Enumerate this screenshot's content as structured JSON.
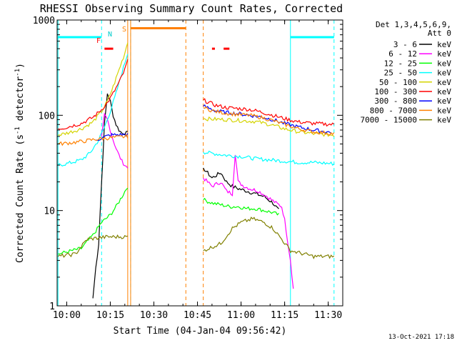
{
  "chart_data": {
    "type": "line",
    "title": "RHESSI Observing Summary Count Rates, Corrected",
    "xlabel": "Start Time (04-Jan-04 09:56:42)",
    "ylabel": "Corrected Count Rate (s⁻¹ detector⁻¹)",
    "ylabel_parts": {
      "main": "Corrected Count Rate (s",
      "sup1": "-1",
      "mid": " detector",
      "sup2": "-1",
      "end": ")"
    },
    "yscale": "log",
    "ylim": [
      1,
      1000
    ],
    "xlim": [
      "09:56:42",
      "11:35:00"
    ],
    "xticks": [
      "10:00",
      "10:15",
      "10:30",
      "10:45",
      "11:00",
      "11:15",
      "11:30"
    ],
    "yticks": [
      "1",
      "10",
      "100",
      "1000"
    ],
    "legend_header": [
      "Det 1,3,4,5,6,9,",
      "Att 0"
    ],
    "legend_position": "right",
    "footer": "13-Oct-2021 17:18",
    "flags": {
      "F": "F",
      "N": "N",
      "S": "S"
    },
    "series": [
      {
        "name": "3 - 6 keV",
        "color": "#000000",
        "points": [
          [
            "10:09",
            1.2
          ],
          [
            "10:10",
            2.5
          ],
          [
            "10:11",
            4.5
          ],
          [
            "10:12",
            20
          ],
          [
            "10:13",
            80
          ],
          [
            "10:14",
            170
          ],
          [
            "10:15",
            140
          ],
          [
            "10:16",
            100
          ],
          [
            "10:17",
            80
          ],
          [
            "10:18",
            70
          ],
          [
            "10:19",
            65
          ],
          [
            "10:21",
            65
          ],
          [
            "10:47",
            28
          ],
          [
            "10:50",
            22
          ],
          [
            "10:53",
            25
          ],
          [
            "10:55",
            20
          ],
          [
            "10:57",
            18
          ],
          [
            "10:59",
            17
          ],
          [
            "11:02",
            16
          ],
          [
            "11:05",
            15
          ],
          [
            "11:08",
            14
          ],
          [
            "11:11",
            12
          ],
          [
            "11:13",
            10
          ]
        ]
      },
      {
        "name": "6 - 12 keV",
        "color": "#ff00ff",
        "points": [
          [
            "10:12",
            60
          ],
          [
            "10:13",
            100
          ],
          [
            "10:14",
            90
          ],
          [
            "10:15",
            70
          ],
          [
            "10:16",
            55
          ],
          [
            "10:17",
            45
          ],
          [
            "10:18",
            38
          ],
          [
            "10:19",
            33
          ],
          [
            "10:20",
            30
          ],
          [
            "10:21",
            28
          ],
          [
            "10:47",
            22
          ],
          [
            "10:50",
            18
          ],
          [
            "10:53",
            20
          ],
          [
            "10:55",
            16
          ],
          [
            "10:57",
            15
          ],
          [
            "10:58",
            40
          ],
          [
            "10:59",
            20
          ],
          [
            "11:01",
            18
          ],
          [
            "11:03",
            17
          ],
          [
            "11:06",
            16
          ],
          [
            "11:09",
            14
          ],
          [
            "11:12",
            12
          ],
          [
            "11:14",
            11
          ],
          [
            "11:15",
            8
          ],
          [
            "11:17",
            3
          ],
          [
            "11:18",
            1.5
          ],
          [
            "11:32",
            1.4
          ]
        ]
      },
      {
        "name": "12 - 25 keV",
        "color": "#00ff00",
        "points": [
          [
            "09:57",
            3.5
          ],
          [
            "10:05",
            4
          ],
          [
            "10:09",
            5.5
          ],
          [
            "10:12",
            7.5
          ],
          [
            "10:15",
            9
          ],
          [
            "10:17",
            11
          ],
          [
            "10:19",
            14
          ],
          [
            "10:21",
            18
          ],
          [
            "10:47",
            13
          ],
          [
            "10:50",
            12
          ],
          [
            "10:53",
            11.5
          ],
          [
            "10:56",
            11
          ],
          [
            "10:59",
            11
          ],
          [
            "11:02",
            10.5
          ],
          [
            "11:05",
            10.5
          ],
          [
            "11:08",
            10
          ],
          [
            "11:11",
            9.5
          ],
          [
            "11:13",
            9
          ]
        ]
      },
      {
        "name": "25 - 50 keV",
        "color": "#00ffff",
        "points": [
          [
            "09:57",
            30
          ],
          [
            "10:00",
            31
          ],
          [
            "10:05",
            34
          ],
          [
            "10:08",
            40
          ],
          [
            "10:11",
            55
          ],
          [
            "10:13",
            75
          ],
          [
            "10:15",
            110
          ],
          [
            "10:17",
            170
          ],
          [
            "10:19",
            280
          ],
          [
            "10:21",
            450
          ],
          [
            "10:47",
            41
          ],
          [
            "10:55",
            38
          ],
          [
            "11:00",
            37
          ],
          [
            "11:05",
            35
          ],
          [
            "11:10",
            34
          ],
          [
            "11:15",
            33
          ],
          [
            "11:20",
            32
          ],
          [
            "11:25",
            32
          ],
          [
            "11:32",
            31
          ]
        ]
      },
      {
        "name": "50 - 100 keV",
        "color": "#d4d400",
        "points": [
          [
            "09:57",
            62
          ],
          [
            "10:00",
            65
          ],
          [
            "10:05",
            72
          ],
          [
            "10:09",
            85
          ],
          [
            "10:12",
            110
          ],
          [
            "10:14",
            140
          ],
          [
            "10:16",
            200
          ],
          [
            "10:18",
            300
          ],
          [
            "10:20",
            450
          ],
          [
            "10:21",
            600
          ],
          [
            "10:47",
            92
          ],
          [
            "10:55",
            90
          ],
          [
            "11:00",
            88
          ],
          [
            "11:05",
            86
          ],
          [
            "11:10",
            80
          ],
          [
            "11:15",
            72
          ],
          [
            "11:20",
            67
          ],
          [
            "11:25",
            64
          ],
          [
            "11:32",
            62
          ]
        ]
      },
      {
        "name": "100 - 300 keV",
        "color": "#ff0000",
        "points": [
          [
            "09:57",
            72
          ],
          [
            "10:00",
            75
          ],
          [
            "10:05",
            82
          ],
          [
            "10:09",
            95
          ],
          [
            "10:12",
            115
          ],
          [
            "10:14",
            135
          ],
          [
            "10:16",
            170
          ],
          [
            "10:18",
            220
          ],
          [
            "10:20",
            300
          ],
          [
            "10:21",
            380
          ],
          [
            "10:47",
            145
          ],
          [
            "10:51",
            128
          ],
          [
            "10:55",
            120
          ],
          [
            "10:59",
            118
          ],
          [
            "11:03",
            115
          ],
          [
            "11:07",
            108
          ],
          [
            "11:11",
            100
          ],
          [
            "11:15",
            92
          ],
          [
            "11:20",
            85
          ],
          [
            "11:25",
            82
          ],
          [
            "11:32",
            80
          ]
        ]
      },
      {
        "name": "300 - 800 keV",
        "color": "#0000ff",
        "points": [
          [
            "10:10",
            55
          ],
          [
            "10:15",
            62
          ],
          [
            "10:21",
            63
          ],
          [
            "10:47",
            125
          ],
          [
            "10:51",
            112
          ],
          [
            "10:55",
            107
          ],
          [
            "10:59",
            104
          ],
          [
            "11:03",
            100
          ],
          [
            "11:07",
            96
          ],
          [
            "11:11",
            90
          ],
          [
            "11:15",
            82
          ],
          [
            "11:20",
            75
          ],
          [
            "11:25",
            70
          ],
          [
            "11:31",
            66
          ]
        ]
      },
      {
        "name": "800 - 7000 keV",
        "color": "#ff8000",
        "points": [
          [
            "09:57",
            50
          ],
          [
            "10:00",
            51
          ],
          [
            "10:05",
            53
          ],
          [
            "10:10",
            56
          ],
          [
            "10:15",
            58
          ],
          [
            "10:21",
            60
          ],
          [
            "10:47",
            120
          ],
          [
            "10:51",
            110
          ],
          [
            "10:55",
            105
          ],
          [
            "10:59",
            102
          ],
          [
            "11:03",
            100
          ],
          [
            "11:07",
            95
          ],
          [
            "11:11",
            88
          ],
          [
            "11:15",
            80
          ],
          [
            "11:20",
            72
          ],
          [
            "11:25",
            67
          ],
          [
            "11:32",
            64
          ]
        ]
      },
      {
        "name": "7000 - 15000 keV",
        "color": "#808000",
        "points": [
          [
            "09:57",
            3.3
          ],
          [
            "10:03",
            3.5
          ],
          [
            "10:07",
            5
          ],
          [
            "10:14",
            5.3
          ],
          [
            "10:21",
            5.3
          ],
          [
            "10:47",
            3.8
          ],
          [
            "10:53",
            4.5
          ],
          [
            "10:57",
            6.5
          ],
          [
            "11:00",
            7.5
          ],
          [
            "11:04",
            8.2
          ],
          [
            "11:08",
            7.5
          ],
          [
            "11:11",
            6.5
          ],
          [
            "11:14",
            5
          ],
          [
            "11:17",
            3.8
          ],
          [
            "11:25",
            3.3
          ],
          [
            "11:32",
            3.3
          ]
        ]
      }
    ],
    "bands": [
      {
        "color": "#00ffff",
        "y": 660,
        "from": "09:57",
        "to": "10:12"
      },
      {
        "color": "#00ffff",
        "y": 660,
        "from": "11:17",
        "to": "11:32"
      },
      {
        "color": "#ff8000",
        "y": 820,
        "from": "10:22",
        "to": "10:41"
      },
      {
        "color": "#ff0000",
        "y": 500,
        "from": "10:13",
        "to": "10:16"
      },
      {
        "color": "#ff0000",
        "y": 500,
        "from": "10:50",
        "to": "10:51"
      },
      {
        "color": "#ff0000",
        "y": 500,
        "from": "10:54",
        "to": "10:56"
      }
    ],
    "vlines": [
      {
        "color": "#00ffff",
        "t": "09:57",
        "dash": false
      },
      {
        "color": "#00ffff",
        "t": "10:12",
        "dash": true
      },
      {
        "color": "#00ffff",
        "t": "10:22",
        "dash": true
      },
      {
        "color": "#ff8000",
        "t": "10:21",
        "dash": false
      },
      {
        "color": "#ff8000",
        "t": "10:22",
        "dash": false
      },
      {
        "color": "#ff8000",
        "t": "10:41",
        "dash": true
      },
      {
        "color": "#ff8000",
        "t": "10:47",
        "dash": true
      },
      {
        "color": "#00ffff",
        "t": "11:17",
        "dash": false
      },
      {
        "color": "#00ffff",
        "t": "11:32",
        "dash": true
      }
    ]
  }
}
